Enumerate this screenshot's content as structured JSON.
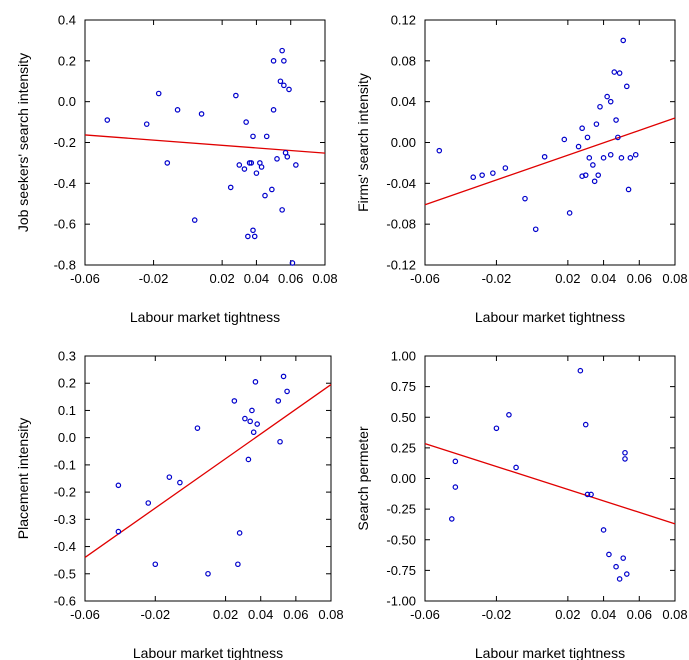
{
  "chart_data": [
    {
      "type": "scatter",
      "xlabel": "Labour market tightness",
      "ylabel": "Job seekers' search intensity",
      "xlim": [
        -0.06,
        0.08
      ],
      "ylim": [
        -0.8,
        0.4
      ],
      "xticks": [
        -0.06,
        -0.02,
        0.02,
        0.04,
        0.06,
        0.08
      ],
      "xtick_labels": [
        "-0.06",
        "-0.02",
        "0.02",
        "0.04",
        "0.06",
        "0.08"
      ],
      "yticks": [
        -0.8,
        -0.6,
        -0.4,
        -0.2,
        0.0,
        0.2,
        0.4
      ],
      "ytick_labels": [
        "-0.8",
        "-0.6",
        "-0.4",
        "-0.2",
        "0.0",
        "0.2",
        "0.4"
      ],
      "marker_color": "#0000cc",
      "line_color": "#e00000",
      "fit_line": [
        [
          -0.06,
          -0.163
        ],
        [
          0.08,
          -0.252
        ]
      ],
      "points": [
        [
          -0.047,
          -0.09
        ],
        [
          -0.024,
          -0.11
        ],
        [
          -0.017,
          0.04
        ],
        [
          -0.012,
          -0.3
        ],
        [
          -0.006,
          -0.04
        ],
        [
          0.004,
          -0.58
        ],
        [
          0.008,
          -0.06
        ],
        [
          0.025,
          -0.42
        ],
        [
          0.028,
          0.03
        ],
        [
          0.03,
          -0.31
        ],
        [
          0.033,
          -0.33
        ],
        [
          0.034,
          -0.1
        ],
        [
          0.035,
          -0.66
        ],
        [
          0.036,
          -0.3
        ],
        [
          0.037,
          -0.3
        ],
        [
          0.038,
          -0.63
        ],
        [
          0.038,
          -0.17
        ],
        [
          0.039,
          -0.66
        ],
        [
          0.04,
          -0.35
        ],
        [
          0.042,
          -0.3
        ],
        [
          0.043,
          -0.32
        ],
        [
          0.045,
          -0.46
        ],
        [
          0.046,
          -0.17
        ],
        [
          0.049,
          -0.43
        ],
        [
          0.05,
          -0.04
        ],
        [
          0.05,
          0.2
        ],
        [
          0.052,
          -0.28
        ],
        [
          0.054,
          0.1
        ],
        [
          0.055,
          0.25
        ],
        [
          0.055,
          -0.53
        ],
        [
          0.056,
          0.08
        ],
        [
          0.056,
          0.2
        ],
        [
          0.057,
          -0.25
        ],
        [
          0.058,
          -0.27
        ],
        [
          0.059,
          0.06
        ],
        [
          0.061,
          -0.79
        ],
        [
          0.063,
          -0.31
        ]
      ]
    },
    {
      "type": "scatter",
      "xlabel": "Labour market tightness",
      "ylabel": "Firms' search intensity",
      "xlim": [
        -0.06,
        0.08
      ],
      "ylim": [
        -0.12,
        0.12
      ],
      "xticks": [
        -0.06,
        -0.02,
        0.02,
        0.04,
        0.06,
        0.08
      ],
      "xtick_labels": [
        "-0.06",
        "-0.02",
        "0.02",
        "0.04",
        "0.06",
        "0.08"
      ],
      "yticks": [
        -0.12,
        -0.08,
        -0.04,
        0.0,
        0.04,
        0.08,
        0.12
      ],
      "ytick_labels": [
        "-0.12",
        "-0.08",
        "-0.04",
        "0.00",
        "0.04",
        "0.08",
        "0.12"
      ],
      "marker_color": "#0000cc",
      "line_color": "#e00000",
      "fit_line": [
        [
          -0.06,
          -0.061
        ],
        [
          0.08,
          0.024
        ]
      ],
      "points": [
        [
          -0.052,
          -0.008
        ],
        [
          -0.033,
          -0.034
        ],
        [
          -0.028,
          -0.032
        ],
        [
          -0.022,
          -0.03
        ],
        [
          -0.015,
          -0.025
        ],
        [
          -0.004,
          -0.055
        ],
        [
          0.002,
          -0.085
        ],
        [
          0.007,
          -0.014
        ],
        [
          0.018,
          0.003
        ],
        [
          0.021,
          -0.069
        ],
        [
          0.026,
          -0.004
        ],
        [
          0.028,
          0.014
        ],
        [
          0.028,
          -0.033
        ],
        [
          0.03,
          -0.032
        ],
        [
          0.031,
          0.005
        ],
        [
          0.032,
          -0.015
        ],
        [
          0.034,
          -0.022
        ],
        [
          0.035,
          -0.038
        ],
        [
          0.036,
          0.018
        ],
        [
          0.037,
          -0.032
        ],
        [
          0.038,
          0.035
        ],
        [
          0.04,
          -0.015
        ],
        [
          0.042,
          0.045
        ],
        [
          0.044,
          0.04
        ],
        [
          0.044,
          -0.012
        ],
        [
          0.046,
          0.069
        ],
        [
          0.047,
          0.022
        ],
        [
          0.048,
          0.005
        ],
        [
          0.049,
          0.068
        ],
        [
          0.05,
          -0.015
        ],
        [
          0.051,
          0.1
        ],
        [
          0.053,
          0.055
        ],
        [
          0.054,
          -0.046
        ],
        [
          0.055,
          -0.015
        ],
        [
          0.058,
          -0.012
        ]
      ]
    },
    {
      "type": "scatter",
      "xlabel": "Labour market tightness",
      "ylabel": "Placement intensity",
      "xlim": [
        -0.06,
        0.08
      ],
      "ylim": [
        -0.6,
        0.3
      ],
      "xticks": [
        -0.06,
        -0.02,
        0.02,
        0.04,
        0.06,
        0.08
      ],
      "xtick_labels": [
        "-0.06",
        "-0.02",
        "0.02",
        "0.04",
        "0.06",
        "0.08"
      ],
      "yticks": [
        -0.6,
        -0.5,
        -0.4,
        -0.3,
        -0.2,
        -0.1,
        0.0,
        0.1,
        0.2,
        0.3
      ],
      "ytick_labels": [
        "-0.6",
        "-0.5",
        "-0.4",
        "-0.3",
        "-0.2",
        "-0.1",
        "0.0",
        "0.1",
        "0.2",
        "0.3"
      ],
      "marker_color": "#0000cc",
      "line_color": "#e00000",
      "fit_line": [
        [
          -0.06,
          -0.44
        ],
        [
          0.08,
          0.195
        ]
      ],
      "points": [
        [
          -0.041,
          -0.175
        ],
        [
          -0.041,
          -0.345
        ],
        [
          -0.024,
          -0.24
        ],
        [
          -0.02,
          -0.465
        ],
        [
          -0.012,
          -0.145
        ],
        [
          -0.006,
          -0.165
        ],
        [
          0.004,
          0.035
        ],
        [
          0.01,
          -0.5
        ],
        [
          0.025,
          0.135
        ],
        [
          0.027,
          -0.465
        ],
        [
          0.028,
          -0.35
        ],
        [
          0.031,
          0.07
        ],
        [
          0.033,
          -0.08
        ],
        [
          0.034,
          0.06
        ],
        [
          0.035,
          0.1
        ],
        [
          0.036,
          0.02
        ],
        [
          0.037,
          0.205
        ],
        [
          0.038,
          0.05
        ],
        [
          0.05,
          0.135
        ],
        [
          0.051,
          -0.015
        ],
        [
          0.053,
          0.225
        ],
        [
          0.055,
          0.17
        ]
      ]
    },
    {
      "type": "scatter",
      "xlabel": "Labour market tightness",
      "ylabel": "Search permeter",
      "xlim": [
        -0.06,
        0.08
      ],
      "ylim": [
        -1.0,
        1.0
      ],
      "xticks": [
        -0.06,
        -0.02,
        0.02,
        0.04,
        0.06,
        0.08
      ],
      "xtick_labels": [
        "-0.06",
        "-0.02",
        "0.02",
        "0.04",
        "0.06",
        "0.08"
      ],
      "yticks": [
        -1.0,
        -0.75,
        -0.5,
        -0.25,
        0.0,
        0.25,
        0.5,
        0.75,
        1.0
      ],
      "ytick_labels": [
        "-1.00",
        "-0.75",
        "-0.50",
        "-0.25",
        "0.00",
        "0.25",
        "0.50",
        "0.75",
        "1.00"
      ],
      "marker_color": "#0000cc",
      "line_color": "#e00000",
      "fit_line": [
        [
          -0.06,
          0.285
        ],
        [
          0.08,
          -0.37
        ]
      ],
      "points": [
        [
          -0.045,
          -0.33
        ],
        [
          -0.043,
          0.14
        ],
        [
          -0.043,
          -0.07
        ],
        [
          -0.02,
          0.41
        ],
        [
          -0.013,
          0.52
        ],
        [
          -0.009,
          0.09
        ],
        [
          0.027,
          0.88
        ],
        [
          0.03,
          0.44
        ],
        [
          0.031,
          -0.13
        ],
        [
          0.033,
          -0.13
        ],
        [
          0.04,
          -0.42
        ],
        [
          0.043,
          -0.62
        ],
        [
          0.047,
          -0.72
        ],
        [
          0.049,
          -0.82
        ],
        [
          0.051,
          -0.65
        ],
        [
          0.052,
          0.16
        ],
        [
          0.052,
          0.21
        ],
        [
          0.053,
          -0.78
        ]
      ]
    }
  ]
}
